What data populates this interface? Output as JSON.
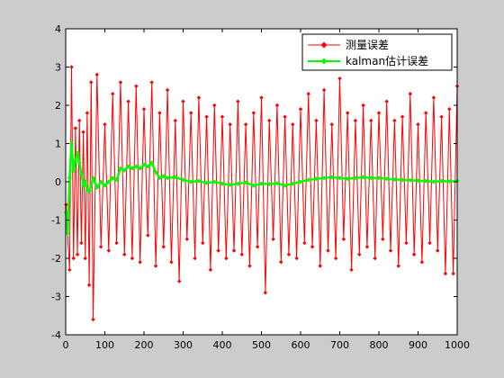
{
  "chart_data": {
    "type": "line",
    "xlim": [
      0,
      1000
    ],
    "ylim": [
      -4,
      4
    ],
    "x_ticks": [
      0,
      100,
      200,
      300,
      400,
      500,
      600,
      700,
      800,
      900,
      1000
    ],
    "y_ticks": [
      -4,
      -3,
      -2,
      -1,
      0,
      1,
      2,
      3,
      4
    ],
    "grid": false,
    "legend_position": "top-right",
    "series": [
      {
        "name": "测量误差",
        "color": "#ff0000",
        "marker": "diamond",
        "x": [
          1,
          10,
          15,
          20,
          25,
          30,
          35,
          40,
          45,
          50,
          55,
          60,
          65,
          70,
          80,
          90,
          100,
          110,
          120,
          130,
          140,
          150,
          160,
          170,
          180,
          190,
          200,
          210,
          220,
          230,
          240,
          250,
          260,
          270,
          280,
          290,
          300,
          310,
          320,
          330,
          340,
          350,
          360,
          370,
          380,
          390,
          400,
          410,
          420,
          430,
          440,
          450,
          460,
          470,
          480,
          490,
          500,
          510,
          520,
          530,
          540,
          550,
          560,
          570,
          580,
          590,
          600,
          610,
          620,
          630,
          640,
          650,
          660,
          670,
          680,
          690,
          700,
          710,
          720,
          730,
          740,
          750,
          760,
          770,
          780,
          790,
          800,
          810,
          820,
          830,
          840,
          850,
          860,
          870,
          880,
          890,
          900,
          910,
          920,
          930,
          940,
          950,
          960,
          970,
          980,
          990,
          1000
        ],
        "y": [
          -0.6,
          -2.3,
          3.0,
          -2.0,
          1.4,
          -1.9,
          1.6,
          -1.6,
          1.3,
          -2.0,
          1.8,
          -2.7,
          2.6,
          -3.6,
          2.8,
          -1.7,
          1.5,
          -1.8,
          2.3,
          -1.6,
          2.6,
          -1.9,
          2.1,
          -2.0,
          2.5,
          -2.1,
          1.9,
          -1.4,
          2.6,
          -2.2,
          1.8,
          -1.7,
          2.4,
          -2.1,
          1.6,
          -2.6,
          2.1,
          -1.5,
          1.8,
          -2.0,
          2.2,
          -1.6,
          1.7,
          -2.3,
          2.0,
          -1.8,
          1.7,
          -2.0,
          1.5,
          -1.8,
          2.1,
          -1.9,
          1.5,
          -2.2,
          1.8,
          -1.7,
          2.2,
          -2.9,
          1.6,
          -1.5,
          2.0,
          -2.1,
          1.7,
          -1.9,
          1.5,
          -2.0,
          1.9,
          -1.6,
          2.3,
          -1.7,
          1.6,
          -2.2,
          2.4,
          -1.8,
          1.5,
          -2.0,
          2.7,
          -1.5,
          1.8,
          -2.3,
          1.6,
          -1.9,
          2.0,
          -1.7,
          1.6,
          -2.0,
          1.8,
          -1.5,
          2.1,
          -1.8,
          1.6,
          -2.2,
          1.7,
          -1.6,
          2.3,
          -1.9,
          1.5,
          -2.1,
          1.8,
          -1.6,
          2.2,
          -1.8,
          1.7,
          -2.4,
          1.9,
          -2.4,
          2.5
        ]
      },
      {
        "name": "kalman估计误差",
        "color": "#00ff00",
        "marker": "diamond",
        "x": [
          1,
          5,
          10,
          15,
          20,
          25,
          30,
          35,
          40,
          45,
          50,
          55,
          60,
          70,
          80,
          90,
          100,
          110,
          120,
          130,
          140,
          150,
          160,
          170,
          180,
          190,
          200,
          210,
          220,
          230,
          240,
          250,
          260,
          280,
          300,
          320,
          340,
          360,
          380,
          400,
          420,
          440,
          460,
          480,
          500,
          520,
          540,
          560,
          580,
          600,
          620,
          640,
          660,
          680,
          700,
          720,
          740,
          760,
          780,
          800,
          820,
          840,
          860,
          880,
          900,
          920,
          940,
          960,
          980,
          1000
        ],
        "y": [
          -0.8,
          -1.35,
          0.1,
          1.0,
          0.3,
          0.55,
          0.75,
          0.5,
          0.2,
          -0.1,
          0.0,
          -0.2,
          -0.25,
          0.1,
          -0.15,
          0.0,
          -0.1,
          0.0,
          0.1,
          0.05,
          0.35,
          0.3,
          0.4,
          0.35,
          0.4,
          0.35,
          0.45,
          0.4,
          0.5,
          0.25,
          0.1,
          0.15,
          0.1,
          0.12,
          0.05,
          0.0,
          0.02,
          -0.03,
          0.0,
          -0.05,
          -0.08,
          -0.05,
          -0.02,
          -0.1,
          -0.05,
          -0.06,
          -0.04,
          -0.1,
          -0.05,
          0.0,
          0.05,
          0.08,
          0.1,
          0.12,
          0.1,
          0.08,
          0.1,
          0.12,
          0.1,
          0.1,
          0.08,
          0.06,
          0.05,
          0.04,
          0.03,
          0.02,
          0.0,
          0.02,
          0.01,
          0.02
        ]
      }
    ]
  }
}
